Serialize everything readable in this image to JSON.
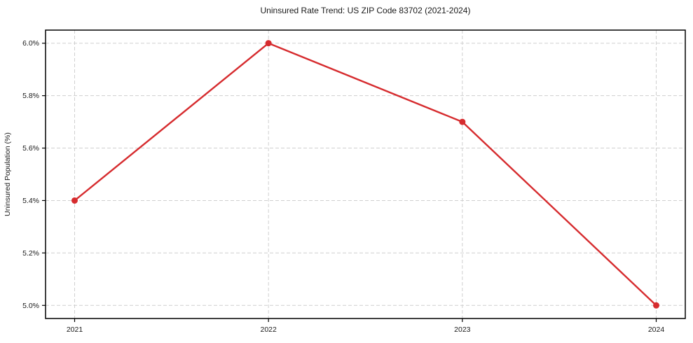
{
  "chart_data": {
    "type": "line",
    "title": "Uninsured Rate Trend: US ZIP Code 83702 (2021-2024)",
    "xlabel": "",
    "ylabel": "Uninsured Population (%)",
    "x": [
      2021,
      2022,
      2023,
      2024
    ],
    "values": [
      5.4,
      6.0,
      5.7,
      5.0
    ],
    "xlim": [
      2020.85,
      2024.15
    ],
    "ylim": [
      4.95,
      6.05
    ],
    "xticks": [
      2021,
      2022,
      2023,
      2024
    ],
    "xtick_labels": [
      "2021",
      "2022",
      "2023",
      "2024"
    ],
    "yticks": [
      5.0,
      5.2,
      5.4,
      5.6,
      5.8,
      6.0
    ],
    "ytick_labels": [
      "5.0%",
      "5.2%",
      "5.4%",
      "5.6%",
      "5.8%",
      "6.0%"
    ],
    "grid": true,
    "legend_position": "none",
    "marker": "circle",
    "colors": {
      "line": "#d62b2e",
      "grid": "#cfcfcf",
      "frame": "#000000",
      "background": "#ffffff",
      "text": "#1a1a1a"
    }
  }
}
